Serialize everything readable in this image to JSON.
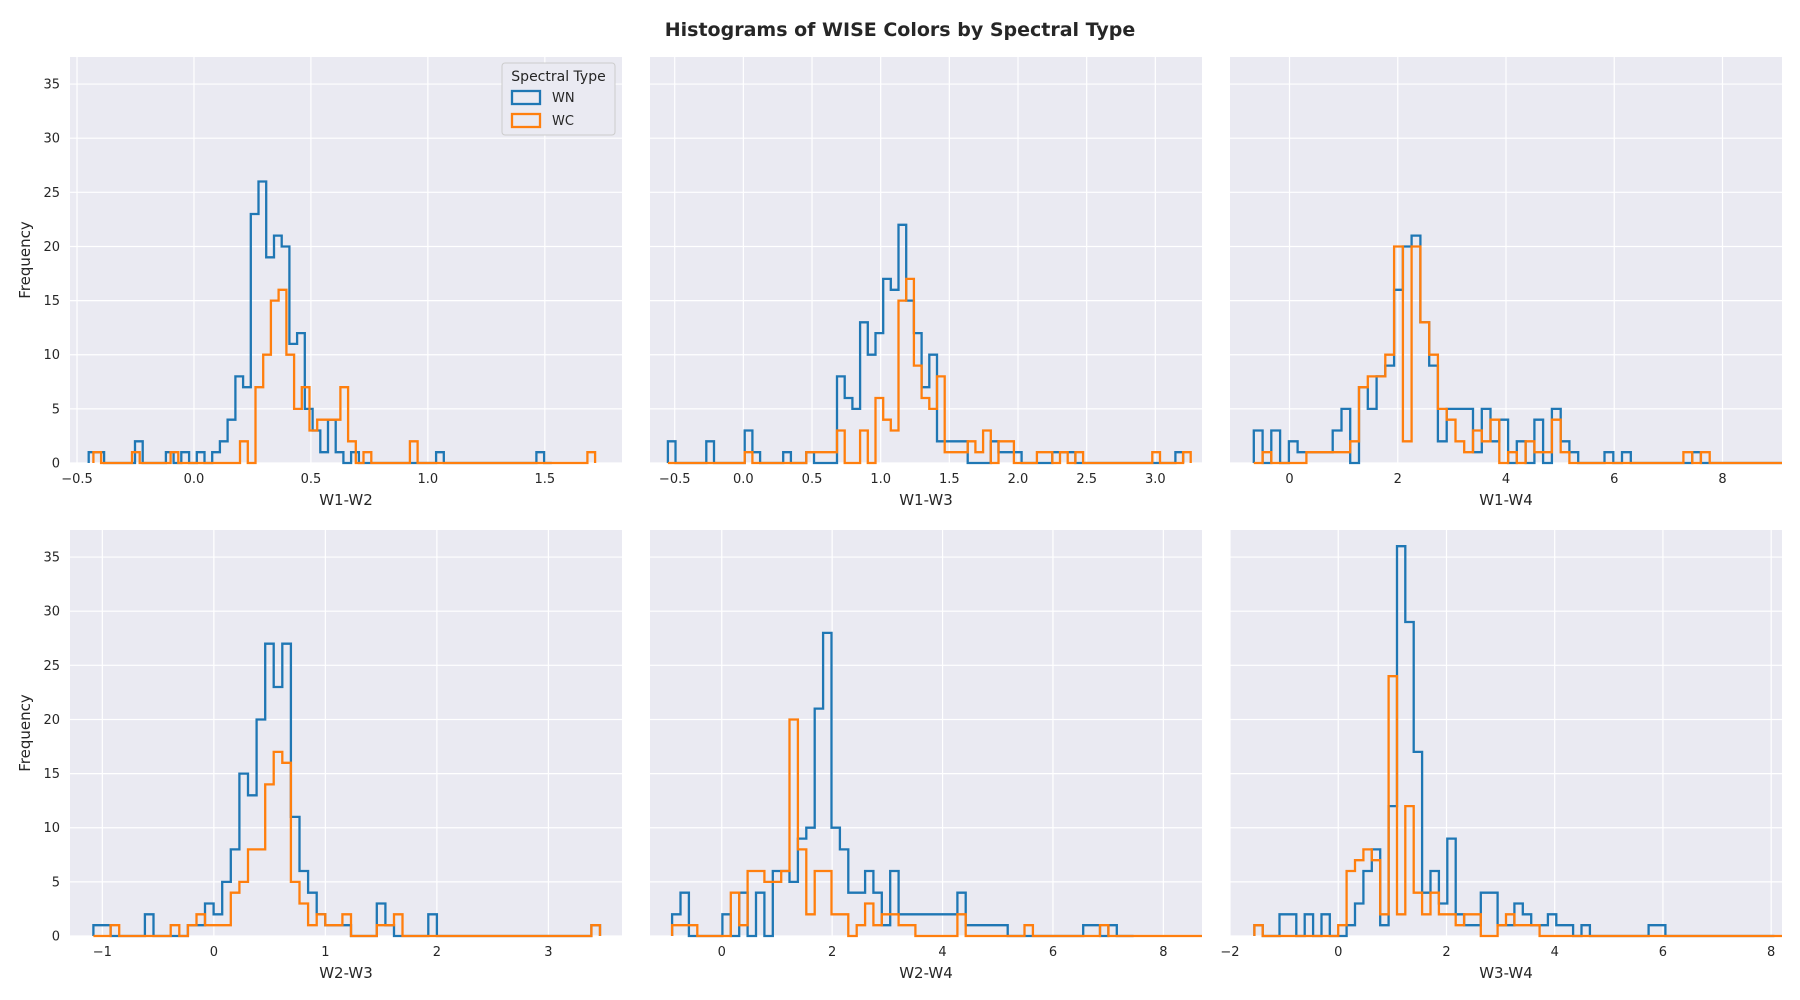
{
  "figure": {
    "title": "Histograms of WISE Colors by Spectral Type",
    "background": "#ffffff",
    "axes_bg": "#eaeaf2",
    "grid_color": "#ffffff",
    "text_color": "#262626"
  },
  "legend": {
    "title": "Spectral Type",
    "placement": "top-right of first panel",
    "entries": [
      {
        "label": "WN",
        "color": "#1f77b4"
      },
      {
        "label": "WC",
        "color": "#ff7f0e"
      }
    ]
  },
  "chart_data": [
    {
      "type": "histogram-step",
      "xlabel": "W1-W2",
      "ylabel": "Frequency",
      "ylim": [
        0,
        37.5
      ],
      "yticks": [
        0,
        5,
        10,
        15,
        20,
        25,
        30,
        35
      ],
      "xlim": [
        -0.53,
        1.83
      ],
      "xticks": [
        -0.5,
        0.0,
        0.5,
        1.0,
        1.5
      ],
      "xtick_labels": [
        "−0.5",
        "0.0",
        "0.5",
        "1.0",
        "1.5"
      ],
      "grid": true,
      "series": [
        {
          "name": "WN",
          "color": "#1f77b4",
          "start": -0.45,
          "width": 0.033,
          "counts": [
            1,
            1,
            0,
            0,
            0,
            0,
            2,
            0,
            0,
            0,
            1,
            0,
            1,
            0,
            1,
            0,
            1,
            2,
            4,
            8,
            7,
            23,
            26,
            19,
            21,
            20,
            11,
            12,
            5,
            3,
            1,
            4,
            1,
            0,
            1,
            0,
            0,
            0,
            0,
            0,
            0,
            0,
            0,
            0,
            0,
            1,
            0,
            0,
            0,
            0,
            0,
            0,
            0,
            0,
            0,
            0,
            0,
            0,
            1,
            0
          ]
        },
        {
          "name": "WC",
          "color": "#ff7f0e",
          "start": -0.43,
          "width": 0.033,
          "counts": [
            1,
            0,
            0,
            0,
            0,
            1,
            0,
            0,
            0,
            0,
            1,
            0,
            0,
            0,
            0,
            0,
            0,
            0,
            0,
            2,
            0,
            7,
            10,
            15,
            16,
            10,
            5,
            7,
            3,
            4,
            4,
            4,
            7,
            2,
            0,
            1,
            0,
            0,
            0,
            0,
            0,
            2,
            0,
            0,
            0,
            0,
            0,
            0,
            0,
            0,
            0,
            0,
            0,
            0,
            0,
            0,
            0,
            0,
            0,
            0,
            0,
            0,
            0,
            0,
            1
          ]
        }
      ]
    },
    {
      "type": "histogram-step",
      "xlabel": "W1-W3",
      "ylabel": "",
      "ylim": [
        0,
        37.5
      ],
      "yticks": [
        0,
        5,
        10,
        15,
        20,
        25,
        30,
        35
      ],
      "xlim": [
        -0.68,
        3.34
      ],
      "xticks": [
        -0.5,
        0.0,
        0.5,
        1.0,
        1.5,
        2.0,
        2.5,
        3.0
      ],
      "xtick_labels": [
        "−0.5",
        "0.0",
        "0.5",
        "1.0",
        "1.5",
        "2.0",
        "2.5",
        "3.0"
      ],
      "grid": true,
      "series": [
        {
          "name": "WN",
          "color": "#1f77b4",
          "start": -0.55,
          "width": 0.056,
          "counts": [
            2,
            0,
            0,
            0,
            0,
            2,
            0,
            0,
            0,
            0,
            3,
            1,
            0,
            0,
            0,
            1,
            0,
            0,
            1,
            0,
            0,
            0,
            8,
            6,
            5,
            13,
            10,
            12,
            17,
            16,
            22,
            15,
            12,
            7,
            10,
            2,
            2,
            2,
            2,
            0,
            0,
            0,
            2,
            1,
            1,
            1,
            0,
            0,
            0,
            0,
            1,
            1,
            1,
            0,
            0,
            0,
            0,
            0,
            0,
            0,
            0,
            0,
            0,
            0,
            0,
            0,
            1
          ]
        },
        {
          "name": "WC",
          "color": "#ff7f0e",
          "start": -0.55,
          "width": 0.056,
          "counts": [
            0,
            0,
            0,
            0,
            0,
            0,
            0,
            0,
            0,
            0,
            1,
            0,
            0,
            0,
            0,
            0,
            0,
            0,
            1,
            1,
            1,
            1,
            3,
            0,
            0,
            3,
            0,
            6,
            4,
            3,
            15,
            17,
            9,
            6,
            5,
            8,
            1,
            1,
            1,
            2,
            1,
            3,
            0,
            2,
            2,
            0,
            0,
            0,
            1,
            1,
            0,
            1,
            0,
            1,
            0,
            0,
            0,
            0,
            0,
            0,
            0,
            0,
            0,
            1,
            0,
            0,
            0,
            1
          ]
        }
      ]
    },
    {
      "type": "histogram-step",
      "xlabel": "W1-W4",
      "ylabel": "",
      "ylim": [
        0,
        37.5
      ],
      "yticks": [
        0,
        5,
        10,
        15,
        20,
        25,
        30,
        35
      ],
      "xlim": [
        -1.1,
        9.1
      ],
      "xticks": [
        0,
        2,
        4,
        6,
        8
      ],
      "xtick_labels": [
        "0",
        "2",
        "4",
        "6",
        "8"
      ],
      "grid": true,
      "series": [
        {
          "name": "WN",
          "color": "#1f77b4",
          "start": -0.66,
          "width": 0.162,
          "counts": [
            3,
            0,
            3,
            0,
            2,
            1,
            1,
            1,
            1,
            3,
            5,
            0,
            7,
            5,
            8,
            9,
            16,
            20,
            21,
            13,
            9,
            2,
            5,
            5,
            5,
            1,
            5,
            2,
            4,
            0,
            2,
            0,
            4,
            0,
            5,
            2,
            1,
            0,
            0,
            0,
            1,
            0,
            1,
            0,
            0,
            0,
            0,
            0,
            0,
            0,
            1,
            0,
            0,
            0,
            0,
            0,
            0,
            0,
            0,
            0,
            0,
            0,
            0,
            0
          ]
        },
        {
          "name": "WC",
          "color": "#ff7f0e",
          "start": -0.66,
          "width": 0.162,
          "counts": [
            0,
            1,
            0,
            0,
            0,
            0,
            1,
            1,
            1,
            1,
            1,
            2,
            7,
            8,
            8,
            10,
            20,
            2,
            20,
            13,
            10,
            5,
            4,
            2,
            1,
            3,
            2,
            4,
            0,
            1,
            0,
            2,
            1,
            1,
            4,
            1,
            0,
            0,
            0,
            0,
            0,
            0,
            0,
            0,
            0,
            0,
            0,
            0,
            0,
            1,
            0,
            1,
            0,
            0,
            0,
            0,
            0,
            0,
            0,
            0,
            0,
            0,
            0,
            1
          ]
        }
      ]
    },
    {
      "type": "histogram-step",
      "xlabel": "W2-W3",
      "ylabel": "Frequency",
      "ylim": [
        0,
        37.5
      ],
      "yticks": [
        0,
        5,
        10,
        15,
        20,
        25,
        30,
        35
      ],
      "xlim": [
        -1.29,
        3.66
      ],
      "xticks": [
        -1,
        0,
        1,
        2,
        3
      ],
      "xtick_labels": [
        "−1",
        "0",
        "1",
        "2",
        "3"
      ],
      "grid": true,
      "series": [
        {
          "name": "WN",
          "color": "#1f77b4",
          "start": -1.08,
          "width": 0.077,
          "counts": [
            1,
            1,
            0,
            0,
            0,
            0,
            2,
            0,
            0,
            0,
            0,
            1,
            1,
            3,
            2,
            5,
            8,
            15,
            13,
            20,
            27,
            23,
            27,
            11,
            6,
            4,
            2,
            1,
            1,
            1,
            0,
            0,
            0,
            3,
            1,
            0,
            0,
            0,
            0,
            2,
            0,
            0,
            0,
            0,
            0,
            0,
            0,
            0,
            0,
            0,
            0,
            0,
            0,
            0,
            0,
            0,
            0,
            0,
            1
          ]
        },
        {
          "name": "WC",
          "color": "#ff7f0e",
          "start": -1.08,
          "width": 0.077,
          "counts": [
            0,
            0,
            1,
            0,
            0,
            0,
            0,
            0,
            0,
            1,
            0,
            1,
            2,
            1,
            1,
            1,
            4,
            5,
            8,
            8,
            14,
            17,
            16,
            5,
            3,
            1,
            2,
            1,
            1,
            2,
            0,
            0,
            0,
            1,
            1,
            2,
            0,
            0,
            0,
            0,
            0,
            0,
            0,
            0,
            0,
            0,
            0,
            0,
            0,
            0,
            0,
            0,
            0,
            0,
            0,
            0,
            0,
            0,
            1
          ]
        }
      ]
    },
    {
      "type": "histogram-step",
      "xlabel": "W2-W4",
      "ylabel": "",
      "ylim": [
        0,
        37.5
      ],
      "yticks": [
        0,
        2,
        4,
        6,
        8
      ],
      "xlim": [
        -1.3,
        8.7
      ],
      "xticks": [
        0,
        2,
        4,
        6,
        8
      ],
      "xtick_labels": [
        "0",
        "2",
        "4",
        "6",
        "8"
      ],
      "grid": true,
      "series": [
        {
          "name": "WN",
          "color": "#1f77b4",
          "start": -0.9,
          "width": 0.152,
          "counts": [
            2,
            4,
            0,
            0,
            0,
            0,
            2,
            0,
            4,
            0,
            4,
            0,
            6,
            6,
            5,
            9,
            10,
            21,
            28,
            10,
            8,
            4,
            4,
            6,
            4,
            1,
            6,
            2,
            2,
            2,
            2,
            2,
            2,
            2,
            4,
            1,
            1,
            1,
            1,
            1,
            0,
            0,
            0,
            0,
            0,
            0,
            0,
            0,
            0,
            1,
            1,
            0,
            1,
            0,
            0
          ]
        },
        {
          "name": "WC",
          "color": "#ff7f0e",
          "start": -0.9,
          "width": 0.152,
          "counts": [
            1,
            1,
            1,
            0,
            0,
            0,
            0,
            4,
            1,
            6,
            6,
            5,
            5,
            6,
            20,
            8,
            2,
            6,
            6,
            2,
            2,
            0,
            1,
            3,
            1,
            2,
            2,
            1,
            1,
            0,
            0,
            0,
            0,
            0,
            2,
            0,
            0,
            0,
            0,
            0,
            0,
            0,
            1,
            0,
            0,
            0,
            0,
            0,
            0,
            0,
            0,
            1,
            0,
            0,
            0,
            0,
            0,
            0,
            0,
            0,
            0,
            0,
            0,
            0,
            0,
            0,
            0,
            1
          ]
        }
      ]
    },
    {
      "type": "histogram-step",
      "xlabel": "W3-W4",
      "ylabel": "",
      "ylim": [
        0,
        37.5
      ],
      "yticks": [
        0,
        2,
        4,
        6,
        8
      ],
      "xlim": [
        -2.0,
        8.2
      ],
      "xticks": [
        -2,
        0,
        2,
        4,
        6,
        8
      ],
      "xtick_labels": [
        "−2",
        "0",
        "2",
        "4",
        "6",
        "8"
      ],
      "grid": true,
      "series": [
        {
          "name": "WN",
          "color": "#1f77b4",
          "start": -1.55,
          "width": 0.155,
          "counts": [
            1,
            0,
            0,
            2,
            2,
            0,
            2,
            0,
            2,
            0,
            0,
            1,
            3,
            6,
            8,
            1,
            12,
            36,
            29,
            17,
            4,
            6,
            3,
            9,
            2,
            1,
            1,
            4,
            4,
            1,
            1,
            3,
            2,
            1,
            1,
            2,
            1,
            1,
            0,
            1,
            0,
            0,
            0,
            0,
            0,
            0,
            0,
            1,
            1,
            0,
            0,
            0,
            0,
            0,
            0,
            0,
            0,
            0,
            0,
            0,
            0,
            0
          ]
        },
        {
          "name": "WC",
          "color": "#ff7f0e",
          "start": -1.55,
          "width": 0.155,
          "counts": [
            1,
            0,
            0,
            0,
            0,
            0,
            0,
            0,
            0,
            0,
            1,
            6,
            7,
            8,
            7,
            2,
            24,
            2,
            12,
            4,
            2,
            4,
            2,
            2,
            1,
            2,
            2,
            0,
            0,
            1,
            2,
            1,
            1,
            1,
            0,
            0,
            0,
            0,
            0,
            0,
            0,
            0,
            0,
            0,
            0,
            0,
            0,
            0,
            0,
            0,
            0,
            0,
            0,
            0,
            0,
            0,
            0,
            0,
            0,
            0,
            0,
            0,
            0,
            0,
            1
          ]
        }
      ]
    }
  ]
}
